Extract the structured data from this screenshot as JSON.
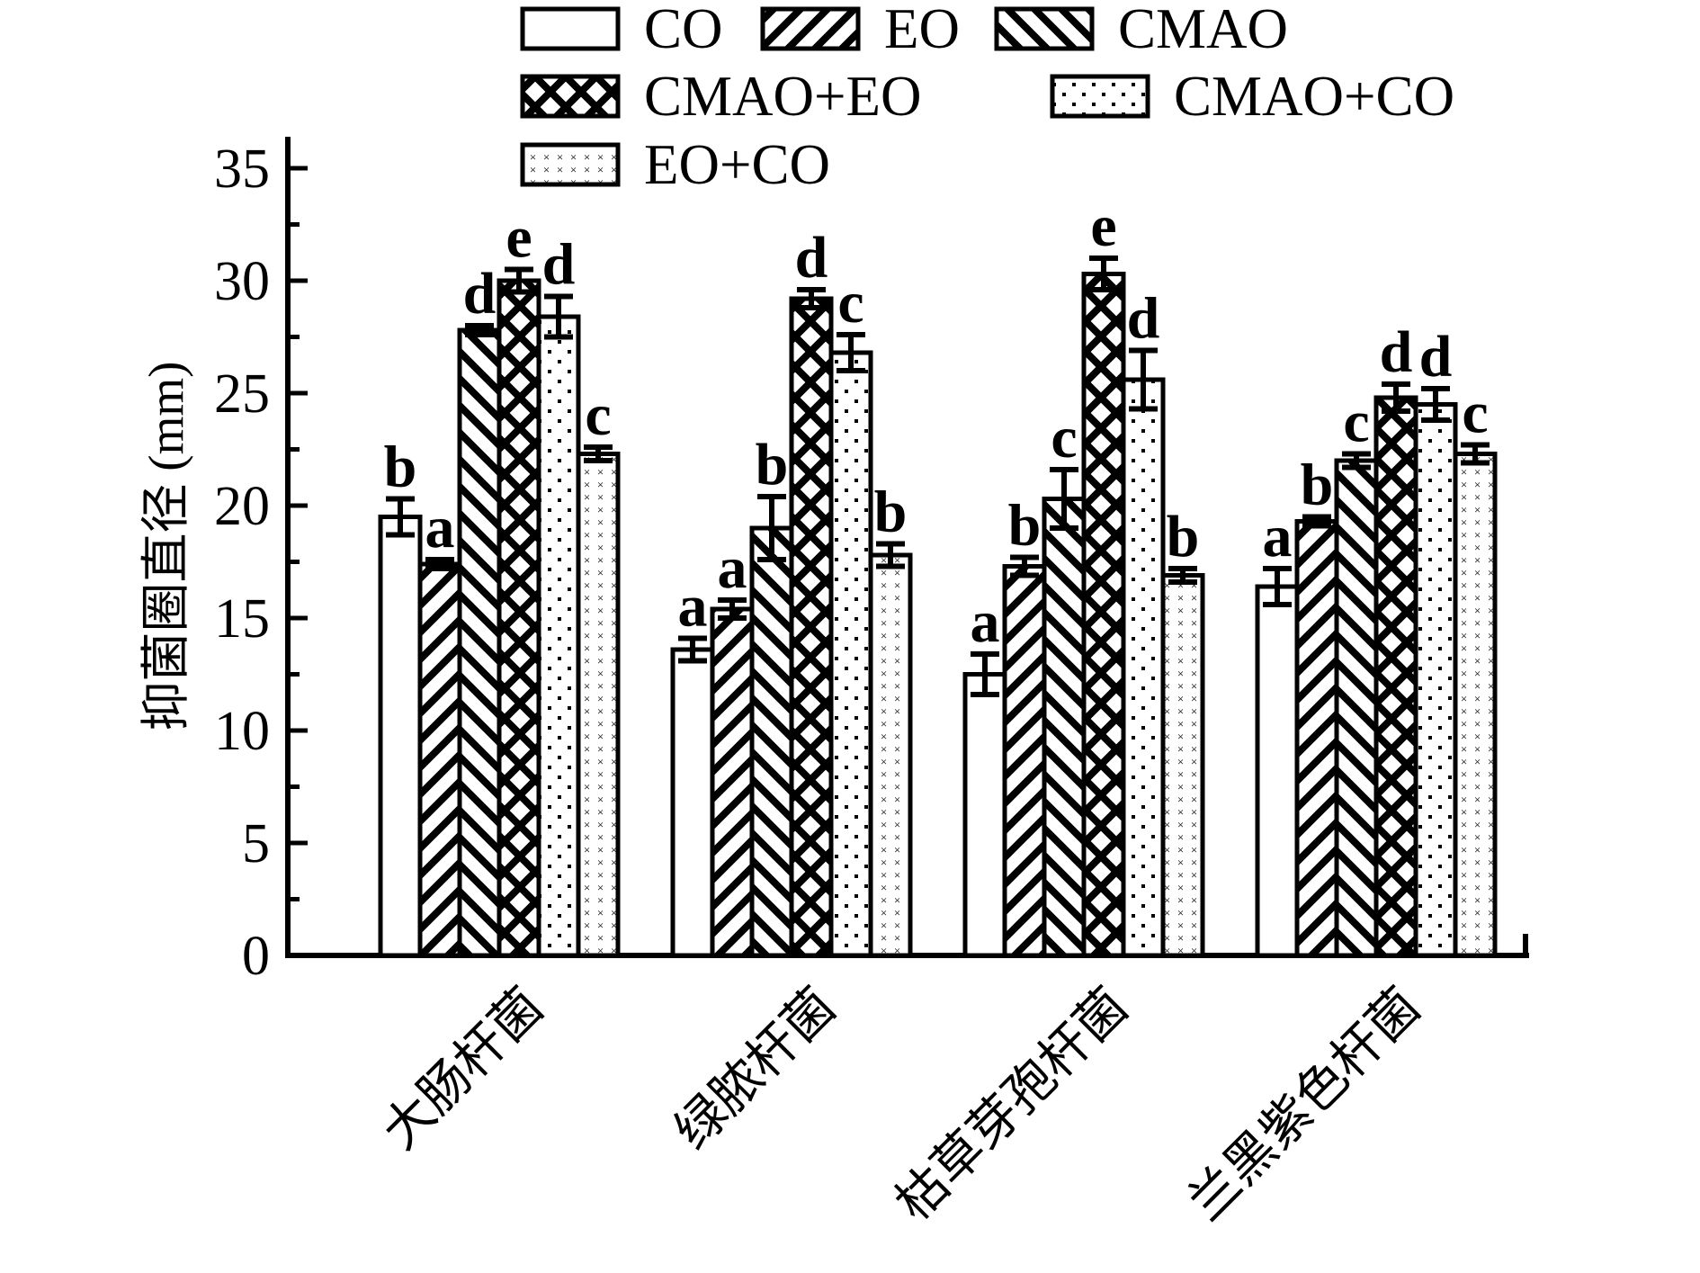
{
  "figure": {
    "background": "#ffffff",
    "ink": "#000000"
  },
  "chart_data": {
    "type": "bar",
    "title": "",
    "xlabel": "",
    "ylabel": "抑菌圈直径 (mm)",
    "ylim": [
      0,
      35
    ],
    "yticks": [
      0,
      5,
      10,
      15,
      20,
      25,
      30,
      35
    ],
    "ytick_minor_step": 2.5,
    "grid": false,
    "legend_position": "top",
    "categories": [
      "大肠杆菌",
      "绿脓杆菌",
      "枯草芽孢杆菌",
      "兰黑紫色杆菌"
    ],
    "series": [
      {
        "name": "CO",
        "pattern": "plain",
        "values": [
          19.5,
          13.6,
          12.5,
          16.4
        ],
        "errors": [
          0.8,
          0.5,
          0.9,
          0.8
        ],
        "letters": [
          "b",
          "a",
          "a",
          "a"
        ]
      },
      {
        "name": "EO",
        "pattern": "hatch-forward",
        "values": [
          17.4,
          15.4,
          17.3,
          19.3
        ],
        "errors": [
          0.2,
          0.4,
          0.4,
          0.2
        ],
        "letters": [
          "a",
          "a",
          "b",
          "b"
        ]
      },
      {
        "name": "CMAO",
        "pattern": "hatch-backward",
        "values": [
          27.8,
          19.0,
          20.3,
          22.0
        ],
        "errors": [
          0.2,
          1.4,
          1.3,
          0.3
        ],
        "letters": [
          "d",
          "b",
          "c",
          "c"
        ]
      },
      {
        "name": "CMAO+EO",
        "pattern": "crosshatch",
        "values": [
          30.0,
          29.2,
          30.3,
          24.8
        ],
        "errors": [
          0.5,
          0.4,
          0.7,
          0.6
        ],
        "letters": [
          "e",
          "d",
          "e",
          "d"
        ]
      },
      {
        "name": "CMAO+CO",
        "pattern": "dots",
        "values": [
          28.4,
          26.8,
          25.6,
          24.5
        ],
        "errors": [
          0.9,
          0.8,
          1.3,
          0.7
        ],
        "letters": [
          "d",
          "c",
          "d",
          "d"
        ]
      },
      {
        "name": "EO+CO",
        "pattern": "x-marks",
        "values": [
          22.3,
          17.8,
          16.9,
          22.3
        ],
        "errors": [
          0.3,
          0.5,
          0.3,
          0.4
        ],
        "letters": [
          "c",
          "b",
          "b",
          "c"
        ]
      }
    ],
    "legend_rows": [
      [
        "CO",
        "EO",
        "CMAO"
      ],
      [
        "CMAO+EO",
        "CMAO+CO"
      ],
      [
        "EO+CO"
      ]
    ]
  }
}
